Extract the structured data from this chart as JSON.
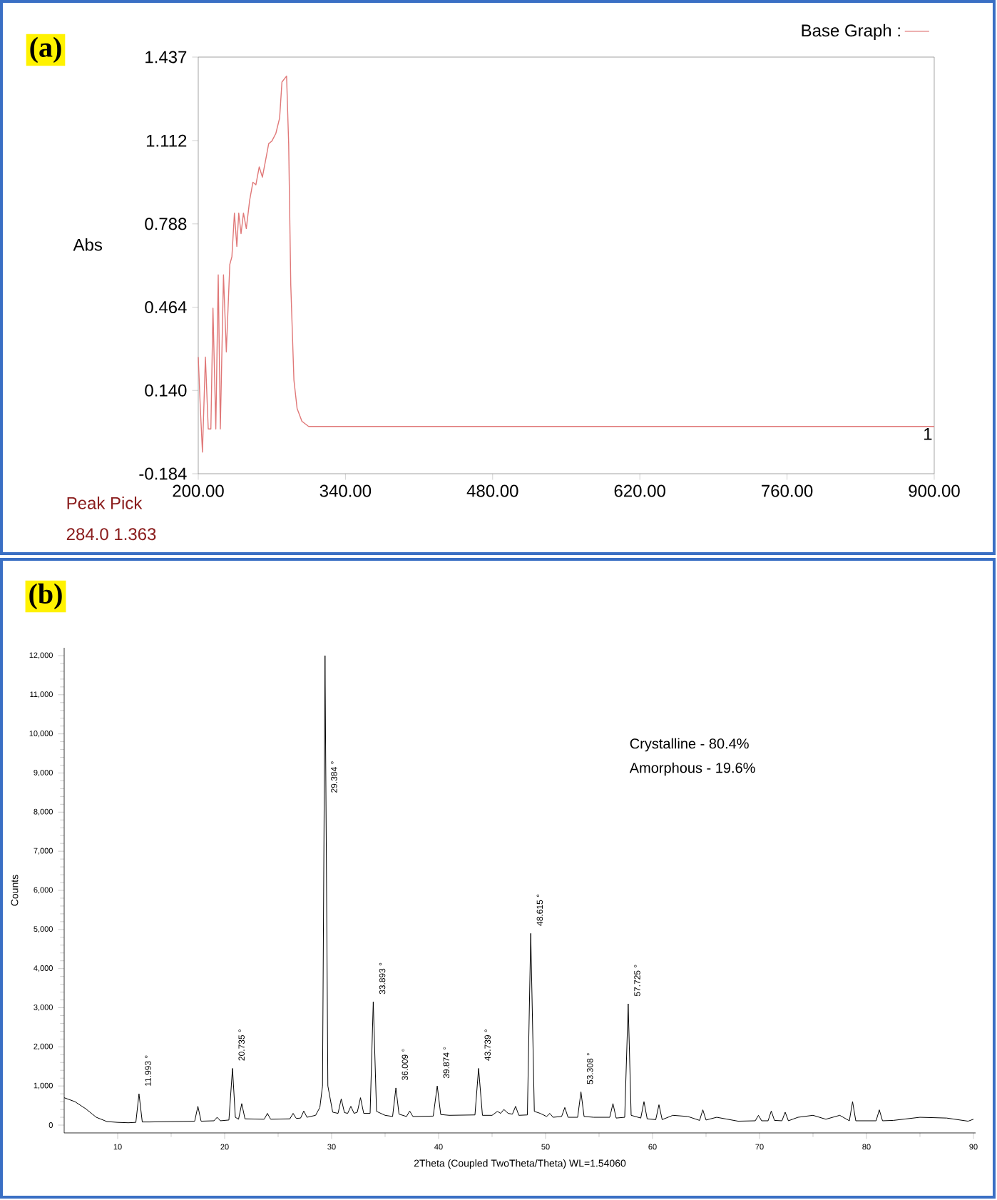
{
  "chart_data": [
    {
      "type": "line",
      "title": "(a)",
      "ylabel": "Abs",
      "legend": "top right",
      "x": [
        200,
        202,
        204,
        206.8,
        209.5,
        212,
        214,
        216.7,
        219,
        221,
        224,
        226.7,
        230,
        232,
        234.4,
        236.7,
        238.5,
        240.7,
        243,
        245.7,
        248.9,
        252,
        254.8,
        258,
        261,
        263.8,
        267,
        270,
        273.8,
        277.4,
        279.6,
        284,
        286,
        288,
        291,
        294,
        298.6,
        305,
        420,
        900
      ],
      "series": [
        {
          "name": "Base Graph :",
          "color": "#e07878",
          "values": [
            0.27,
            0.07,
            -0.1,
            0.27,
            -0.01,
            -0.01,
            0.46,
            -0.01,
            0.59,
            -0.01,
            0.59,
            0.29,
            0.63,
            0.66,
            0.83,
            0.7,
            0.83,
            0.75,
            0.83,
            0.77,
            0.88,
            0.95,
            0.94,
            1.01,
            0.97,
            1.03,
            1.1,
            1.11,
            1.14,
            1.2,
            1.34,
            1.363,
            1.1,
            0.55,
            0.18,
            0.07,
            0.02,
            0.0,
            0.0,
            0.0
          ]
        }
      ],
      "xlim": [
        200,
        900
      ],
      "ylim": [
        -0.184,
        1.437
      ],
      "xticks": [
        {
          "value": 200,
          "label": "200.00"
        },
        {
          "value": 340,
          "label": "340.00"
        },
        {
          "value": 480,
          "label": "480.00"
        },
        {
          "value": 620,
          "label": "620.00"
        },
        {
          "value": 760,
          "label": "760.00"
        },
        {
          "value": 900,
          "label": "900.00"
        }
      ],
      "yticks": [
        -0.184,
        {
          "value": 0.14,
          "label": "0.140"
        },
        0.464,
        0.788,
        1.112,
        1.437
      ],
      "annotations": [
        {
          "text": "1",
          "x": 900,
          "y": 0.0
        },
        "Peak Pick",
        "284.0   1.363"
      ]
    },
    {
      "type": "line",
      "title": "(b)",
      "xlabel": "2Theta (Coupled TwoTheta/Theta) WL=1.54060",
      "ylabel": "Counts",
      "x": [
        5,
        6,
        7,
        8,
        9,
        10,
        11,
        11.7,
        11.993,
        12.3,
        13,
        15,
        17.2,
        17.5,
        17.8,
        19,
        19.3,
        19.6,
        20.4,
        20.735,
        21.0,
        21.3,
        21.6,
        21.9,
        23.7,
        24,
        24.3,
        26.1,
        26.4,
        26.7,
        27.1,
        27.4,
        27.7,
        28.5,
        28.9,
        29.15,
        29.384,
        29.65,
        30.1,
        30.6,
        30.9,
        31.2,
        31.5,
        31.8,
        32.1,
        32.4,
        32.7,
        33.0,
        33.6,
        33.893,
        34.2,
        35,
        35.7,
        36.009,
        36.3,
        37.0,
        37.3,
        37.6,
        39.5,
        39.874,
        40.2,
        41,
        43.4,
        43.739,
        44.1,
        45,
        45.5,
        45.8,
        46.1,
        46.5,
        46.9,
        47.2,
        47.5,
        48.3,
        48.615,
        48.95,
        49.5,
        50.1,
        50.4,
        50.7,
        51.5,
        51.8,
        52.1,
        53.0,
        53.308,
        53.6,
        54.5,
        56.0,
        56.3,
        56.6,
        57.4,
        57.725,
        58.0,
        58.9,
        59.2,
        59.5,
        60.3,
        60.6,
        60.9,
        61.9,
        63.3,
        64.4,
        64.7,
        65.0,
        66.0,
        68,
        69.6,
        69.9,
        70.2,
        70.8,
        71.1,
        71.4,
        72.1,
        72.4,
        72.7,
        73.6,
        75,
        76.2,
        77.5,
        78.4,
        78.7,
        79.0,
        80.9,
        81.2,
        81.5,
        82.5,
        85,
        87.5,
        89.5,
        90
      ],
      "series": [
        {
          "color": "#000000",
          "values": [
            700,
            600,
            420,
            200,
            90,
            70,
            60,
            70,
            800,
            80,
            80,
            90,
            100,
            480,
            100,
            110,
            200,
            110,
            130,
            1450,
            200,
            150,
            550,
            160,
            150,
            300,
            150,
            160,
            300,
            170,
            180,
            360,
            200,
            250,
            450,
            1000,
            12000,
            1000,
            330,
            300,
            670,
            320,
            300,
            480,
            300,
            330,
            700,
            300,
            300,
            3150,
            350,
            250,
            220,
            950,
            280,
            220,
            360,
            220,
            230,
            1000,
            270,
            250,
            260,
            1450,
            250,
            250,
            350,
            300,
            400,
            300,
            280,
            480,
            250,
            260,
            4900,
            350,
            300,
            220,
            300,
            200,
            220,
            450,
            200,
            200,
            850,
            220,
            200,
            200,
            550,
            180,
            200,
            3100,
            250,
            180,
            600,
            160,
            140,
            520,
            140,
            250,
            220,
            120,
            390,
            130,
            200,
            100,
            110,
            250,
            110,
            110,
            360,
            120,
            110,
            330,
            110,
            200,
            250,
            150,
            250,
            110,
            600,
            110,
            110,
            390,
            110,
            120,
            200,
            180,
            100,
            150
          ]
        }
      ],
      "xlim": [
        5,
        90.2
      ],
      "ylim": [
        -200,
        12200
      ],
      "xticks": [
        10,
        20,
        30,
        40,
        50,
        60,
        70,
        80,
        90
      ],
      "yticks": [
        0,
        {
          "value": 1000,
          "label": "1,000"
        },
        {
          "value": 2000,
          "label": "2,000"
        },
        {
          "value": 3000,
          "label": "3,000"
        },
        {
          "value": 4000,
          "label": "4,000"
        },
        {
          "value": 5000,
          "label": "5,000"
        },
        {
          "value": 6000,
          "label": "6,000"
        },
        {
          "value": 7000,
          "label": "7,000"
        },
        {
          "value": 8000,
          "label": "8,000"
        },
        {
          "value": 9000,
          "label": "9,000"
        },
        {
          "value": 10000,
          "label": "10,000"
        },
        {
          "value": 11000,
          "label": "11,000"
        },
        {
          "value": 12000,
          "label": "12,000"
        }
      ],
      "annotations": [
        {
          "text": "11.993 °",
          "x": 11.993,
          "y": 800
        },
        {
          "text": "20.735 °",
          "x": 20.735,
          "y": 1450
        },
        {
          "text": "29.384 °",
          "x": 29.384,
          "y": 8300
        },
        {
          "text": "33.893 °",
          "x": 33.893,
          "y": 3150
        },
        {
          "text": "36.009 °",
          "x": 36.009,
          "y": 950
        },
        {
          "text": "39.874 °",
          "x": 39.874,
          "y": 1000
        },
        {
          "text": "43.739 °",
          "x": 43.739,
          "y": 1450
        },
        {
          "text": "48.615 °",
          "x": 48.615,
          "y": 4900
        },
        {
          "text": "53.308 °",
          "x": 53.308,
          "y": 850
        },
        {
          "text": "57.725 °",
          "x": 57.725,
          "y": 3100
        },
        "Crystalline - 80.4%",
        "Amorphous - 19.6%"
      ]
    }
  ]
}
